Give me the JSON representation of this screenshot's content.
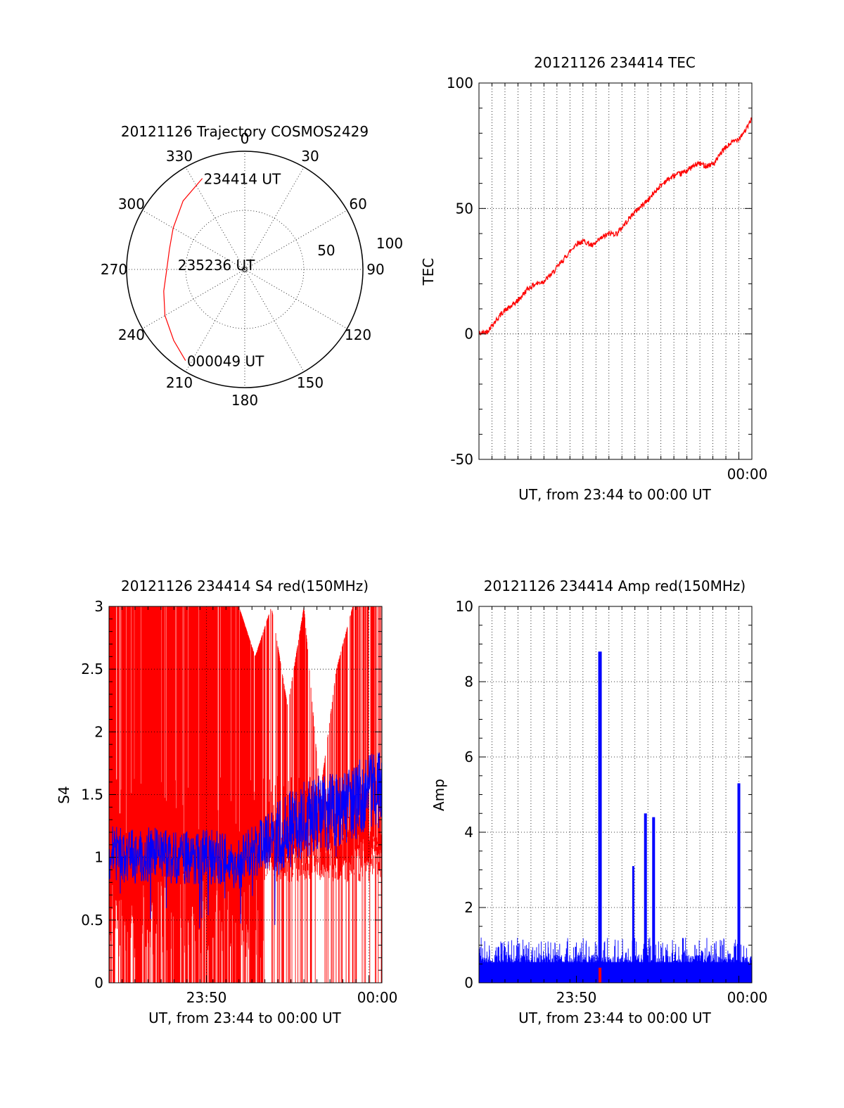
{
  "colors": {
    "trajectory": "#ff0000",
    "tec_line": "#ff0000",
    "s4_red": "#ff0000",
    "s4_blue": "#0000ff",
    "amp_blue": "#0000ff",
    "amp_red": "#ff0000",
    "axes": "#000000"
  },
  "chart_data": [
    {
      "type": "polar",
      "title": "20121126 Trajectory COSMOS2429",
      "angle_labels": [
        "0",
        "30",
        "60",
        "90",
        "120",
        "150",
        "180",
        "210",
        "240",
        "270",
        "300",
        "330"
      ],
      "angle_values": [
        0,
        30,
        60,
        90,
        120,
        150,
        180,
        210,
        240,
        270,
        300,
        330
      ],
      "radial_labels": [
        "50",
        "100"
      ],
      "radial_values": [
        50,
        100
      ],
      "radial_axis": "zenith angle, 0 at center, 100 at outer ring",
      "annotations": [
        {
          "text": "234414 UT",
          "azimuth": 335,
          "radius": 85
        },
        {
          "text": "235236 UT",
          "azimuth": 274,
          "radius": 58
        },
        {
          "text": "000049 UT",
          "azimuth": 213,
          "radius": 92
        }
      ],
      "trajectory": {
        "series": "satellite track",
        "points": [
          {
            "azimuth": 335,
            "radius": 85
          },
          {
            "azimuth": 318,
            "radius": 78
          },
          {
            "azimuth": 300,
            "radius": 70
          },
          {
            "azimuth": 285,
            "radius": 66
          },
          {
            "azimuth": 270,
            "radius": 66
          },
          {
            "azimuth": 255,
            "radius": 71
          },
          {
            "azimuth": 240,
            "radius": 78
          },
          {
            "azimuth": 225,
            "radius": 85
          },
          {
            "azimuth": 213,
            "radius": 92
          }
        ]
      }
    },
    {
      "type": "line",
      "title": "20121126 234414 TEC",
      "xlabel": "UT, from 23:44 to 00:00 UT",
      "ylabel": "TEC",
      "xlim_minutes": [
        0,
        16.8
      ],
      "ylim": [
        -50,
        100
      ],
      "y_ticks": [
        -50,
        0,
        50,
        100
      ],
      "y_tick_labels": [
        "-50",
        "0",
        "50",
        "100"
      ],
      "x_tick_minutes": [
        16
      ],
      "x_tick_labels": [
        "00:00"
      ],
      "x_gridlines_minutes": [
        0.8,
        1.6,
        2.4,
        3.2,
        4.0,
        4.8,
        5.6,
        6.4,
        7.2,
        8.0,
        8.8,
        9.6,
        10.4,
        11.2,
        12.0,
        12.8,
        13.6,
        14.4,
        15.2,
        16.0
      ],
      "series": [
        {
          "name": "TEC",
          "x_minutes": [
            0,
            0.5,
            1,
            1.5,
            2,
            2.5,
            3,
            3.5,
            4,
            4.5,
            5,
            5.5,
            6,
            6.5,
            7,
            7.5,
            8,
            8.5,
            9,
            9.5,
            10,
            10.5,
            11,
            11.5,
            12,
            12.5,
            13,
            13.5,
            14,
            14.5,
            15,
            15.5,
            16,
            16.5,
            16.8
          ],
          "values": [
            0,
            1,
            5,
            9,
            11,
            14,
            18,
            20,
            21,
            24,
            28,
            32,
            36,
            37,
            35,
            38,
            40,
            40,
            44,
            48,
            51,
            54,
            58,
            61,
            63,
            64,
            66,
            68,
            67,
            68,
            73,
            76,
            78,
            82,
            86
          ]
        }
      ]
    },
    {
      "type": "line",
      "title": "20121126 234414 S4 red(150MHz)",
      "xlabel": "UT, from 23:44 to 00:00 UT",
      "ylabel": "S4",
      "xlim_minutes": [
        0,
        16.8
      ],
      "ylim": [
        0,
        3
      ],
      "y_ticks": [
        0,
        0.5,
        1,
        1.5,
        2,
        2.5,
        3
      ],
      "y_tick_labels": [
        "0",
        "0.5",
        "1",
        "1.5",
        "2",
        "2.5",
        "3"
      ],
      "x_tick_minutes": [
        6,
        16
      ],
      "x_tick_labels": [
        "23:50",
        "00:00"
      ],
      "series": [
        {
          "name": "red (150MHz)",
          "description": "dense noisy spikes, frequently saturating at 3 during 23:44-23:53, sparser afterwards",
          "x_minutes": [
            0,
            1,
            2,
            3,
            4,
            5,
            6,
            7,
            8,
            9,
            10,
            11,
            12,
            13,
            14,
            15,
            16,
            16.8
          ],
          "values": [
            3,
            3,
            3,
            3,
            3,
            3,
            3,
            3,
            3,
            2.6,
            3,
            2.2,
            3,
            1.5,
            2.5,
            3,
            3,
            3
          ]
        },
        {
          "name": "blue",
          "x_minutes": [
            0,
            1,
            2,
            3,
            4,
            5,
            6,
            7,
            8,
            9,
            10,
            11,
            12,
            13,
            14,
            15,
            16,
            16.8
          ],
          "values": [
            1.05,
            1.0,
            1.0,
            1.05,
            1.0,
            1.0,
            1.0,
            1.0,
            0.95,
            1.05,
            1.15,
            1.2,
            1.3,
            1.35,
            1.4,
            1.45,
            1.5,
            1.55
          ]
        }
      ]
    },
    {
      "type": "line",
      "title": "20121126 234414 Amp red(150MHz)",
      "xlabel": "UT, from 23:44 to 00:00 UT",
      "ylabel": "Amp",
      "xlim_minutes": [
        0,
        16.8
      ],
      "ylim": [
        0,
        10
      ],
      "y_ticks": [
        0,
        2,
        4,
        6,
        8,
        10
      ],
      "y_tick_labels": [
        "0",
        "2",
        "4",
        "6",
        "8",
        "10"
      ],
      "x_tick_minutes": [
        6,
        16
      ],
      "x_tick_labels": [
        "23:50",
        "00:00"
      ],
      "series": [
        {
          "name": "blue",
          "baseline_noise_max": 1.2,
          "spikes": [
            {
              "minute": 7.45,
              "value": 8.8
            },
            {
              "minute": 9.5,
              "value": 3.1
            },
            {
              "minute": 10.25,
              "value": 4.5
            },
            {
              "minute": 10.75,
              "value": 4.4
            },
            {
              "minute": 16.0,
              "value": 5.3
            }
          ]
        },
        {
          "name": "red",
          "spikes": [
            {
              "minute": 7.45,
              "value": 0.4
            }
          ]
        }
      ]
    }
  ]
}
